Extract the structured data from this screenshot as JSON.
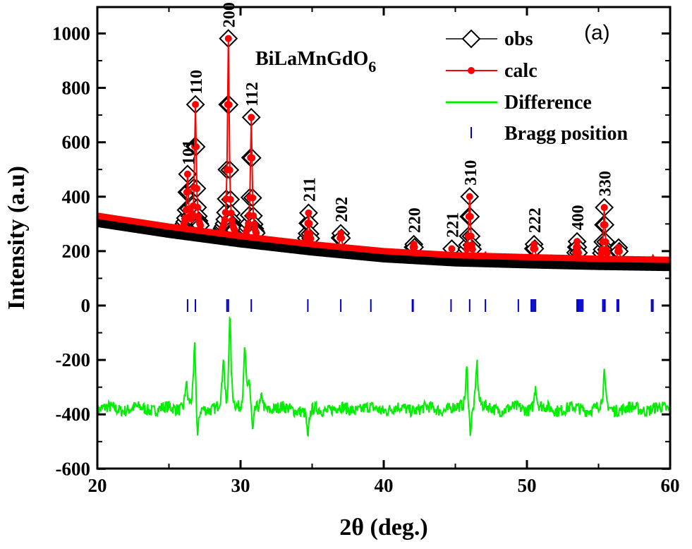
{
  "chart_data": {
    "type": "line",
    "title": "BiLaMnGdO6",
    "title_main": "BiLaMnGdO",
    "title_sub": "6",
    "panel_label": "(a)",
    "xlabel": "2θ (deg.)",
    "ylabel": "Intensity (a.u)",
    "xlim": [
      20,
      60
    ],
    "ylim": [
      -600,
      1050
    ],
    "xticks": [
      20,
      30,
      40,
      50,
      60
    ],
    "yticks": [
      -600,
      -400,
      -200,
      0,
      200,
      400,
      600,
      800,
      1000
    ],
    "legend_position": "top-right",
    "legend": [
      {
        "name": "obs",
        "color": "#000000",
        "marker": "diamond"
      },
      {
        "name": "calc",
        "color": "#ff0000",
        "marker": "circle"
      },
      {
        "name": "Difference",
        "color": "#00ee00",
        "marker": "line"
      },
      {
        "name": "Bragg position",
        "color": "#0000cc",
        "marker": "tick"
      }
    ],
    "background": [
      [
        20,
        330
      ],
      [
        25,
        290
      ],
      [
        30,
        255
      ],
      [
        35,
        225
      ],
      [
        40,
        200
      ],
      [
        45,
        185
      ],
      [
        50,
        178
      ],
      [
        55,
        172
      ],
      [
        60,
        168
      ]
    ],
    "peaks": [
      {
        "label": "101",
        "x": 26.3,
        "intensity": 475
      },
      {
        "label": "110",
        "x": 26.85,
        "intensity": 735
      },
      {
        "label": "200",
        "x": 29.15,
        "intensity": 980
      },
      {
        "label": "112",
        "x": 30.75,
        "intensity": 690
      },
      {
        "label": "211",
        "x": 34.75,
        "intensity": 340
      },
      {
        "label": "202",
        "x": 37.0,
        "intensity": 265
      },
      {
        "label": "",
        "x": 39.1,
        "intensity": 210
      },
      {
        "label": "220",
        "x": 42.1,
        "intensity": 225
      },
      {
        "label": "221",
        "x": 44.75,
        "intensity": 208
      },
      {
        "label": "310",
        "x": 46.0,
        "intensity": 400
      },
      {
        "label": "",
        "x": 47.1,
        "intensity": 195
      },
      {
        "label": "222",
        "x": 50.5,
        "intensity": 225
      },
      {
        "label": "400",
        "x": 53.5,
        "intensity": 235
      },
      {
        "label": "330",
        "x": 55.4,
        "intensity": 360
      },
      {
        "label": "",
        "x": 56.4,
        "intensity": 212
      },
      {
        "label": "",
        "x": 58.8,
        "intensity": 185
      }
    ],
    "bragg_positions": [
      26.3,
      26.85,
      29.05,
      29.15,
      30.75,
      34.7,
      37.0,
      39.1,
      42.0,
      42.05,
      44.7,
      46.0,
      47.1,
      49.4,
      50.3,
      50.4,
      50.5,
      50.6,
      53.5,
      53.6,
      53.7,
      53.8,
      53.9,
      55.3,
      55.4,
      55.45,
      56.3,
      56.4,
      58.7,
      58.8,
      60.0
    ],
    "difference": {
      "baseline": -380,
      "features": [
        [
          26.2,
          -280
        ],
        [
          26.8,
          -140
        ],
        [
          27.0,
          -530
        ],
        [
          28.8,
          -200
        ],
        [
          29.05,
          -450
        ],
        [
          29.25,
          -30
        ],
        [
          30.3,
          -160
        ],
        [
          30.6,
          -280
        ],
        [
          30.85,
          -490
        ],
        [
          31.5,
          -330
        ],
        [
          34.7,
          -500
        ],
        [
          45.8,
          -220
        ],
        [
          46.05,
          -480
        ],
        [
          46.5,
          -205
        ],
        [
          50.6,
          -290
        ],
        [
          55.4,
          -260
        ]
      ]
    }
  }
}
